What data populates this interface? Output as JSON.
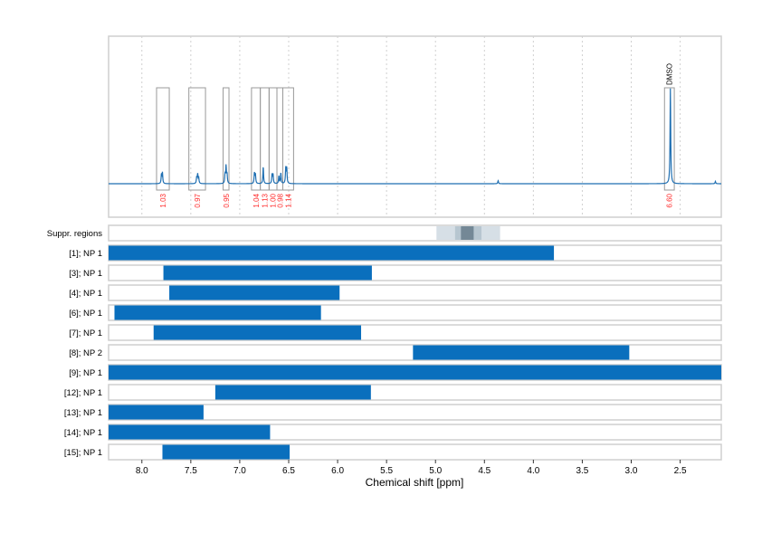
{
  "chart_data": {
    "type": "line",
    "xlabel": "Chemical shift [ppm]",
    "xlim": [
      8.34,
      2.08
    ],
    "x_ticks": [
      8.0,
      7.5,
      7.0,
      6.5,
      6.0,
      5.5,
      5.0,
      4.5,
      4.0,
      3.5,
      3.0,
      2.5
    ],
    "x_tick_labels": [
      "8.0",
      "7.5",
      "7.0",
      "6.5",
      "6.0",
      "5.5",
      "5.0",
      "4.5",
      "4.0",
      "3.5",
      "3.0",
      "2.5"
    ],
    "grid": "vertical dotted",
    "colors": {
      "spectrum": "#1f6fb2",
      "bar": "#0a6fbd",
      "integral_label": "#ff2a2a",
      "box": "#999999"
    },
    "peaks": [
      {
        "ppm": 7.8,
        "h": 0.06
      },
      {
        "ppm": 7.79,
        "h": 0.07
      },
      {
        "ppm": 7.44,
        "h": 0.04
      },
      {
        "ppm": 7.43,
        "h": 0.06
      },
      {
        "ppm": 7.42,
        "h": 0.04
      },
      {
        "ppm": 7.15,
        "h": 0.06
      },
      {
        "ppm": 7.14,
        "h": 0.11
      },
      {
        "ppm": 7.13,
        "h": 0.06
      },
      {
        "ppm": 6.85,
        "h": 0.07
      },
      {
        "ppm": 6.84,
        "h": 0.06
      },
      {
        "ppm": 6.76,
        "h": 0.11
      },
      {
        "ppm": 6.67,
        "h": 0.06
      },
      {
        "ppm": 6.66,
        "h": 0.06
      },
      {
        "ppm": 6.6,
        "h": 0.05
      },
      {
        "ppm": 6.58,
        "h": 0.07
      },
      {
        "ppm": 6.53,
        "h": 0.1
      },
      {
        "ppm": 6.52,
        "h": 0.1
      },
      {
        "ppm": 4.36,
        "h": 0.02
      },
      {
        "ppm": 2.6,
        "h": 0.62
      },
      {
        "ppm": 2.14,
        "h": 0.015
      }
    ],
    "integrals": [
      {
        "from": 7.85,
        "to": 7.72,
        "value": "1.03"
      },
      {
        "from": 7.52,
        "to": 7.35,
        "value": "0.97"
      },
      {
        "from": 7.17,
        "to": 7.11,
        "value": "0.95"
      },
      {
        "from": 6.88,
        "to": 6.79,
        "value": "1.04"
      },
      {
        "from": 6.79,
        "to": 6.7,
        "value": "1.13"
      },
      {
        "from": 6.7,
        "to": 6.62,
        "value": "1.00"
      },
      {
        "from": 6.62,
        "to": 6.56,
        "value": "0.98"
      },
      {
        "from": 6.56,
        "to": 6.45,
        "value": "1.14"
      },
      {
        "from": 2.66,
        "to": 2.56,
        "value": "6.60",
        "annotation": "DMSO"
      }
    ],
    "suppression": {
      "label": "Suppr. regions",
      "regions": [
        {
          "from": 4.99,
          "to": 4.34,
          "color": "#d6dfe6"
        },
        {
          "from": 4.8,
          "to": 4.53,
          "color": "#b7c6d0"
        },
        {
          "from": 4.74,
          "to": 4.61,
          "color": "#748896"
        }
      ]
    },
    "rows": [
      {
        "label": "[1]; NP 1",
        "from": 8.34,
        "to": 3.79
      },
      {
        "label": "[3]; NP 1",
        "from": 7.78,
        "to": 5.65
      },
      {
        "label": "[4]; NP 1",
        "from": 7.72,
        "to": 5.98
      },
      {
        "label": "[6]; NP 1",
        "from": 8.28,
        "to": 6.17
      },
      {
        "label": "[7]; NP 1",
        "from": 7.88,
        "to": 5.76
      },
      {
        "label": "[8]; NP 2",
        "from": 5.23,
        "to": 3.02
      },
      {
        "label": "[9]; NP 1",
        "from": 8.34,
        "to": 2.08
      },
      {
        "label": "[12]; NP 1",
        "from": 7.25,
        "to": 5.66
      },
      {
        "label": "[13]; NP 1",
        "from": 8.34,
        "to": 7.37
      },
      {
        "label": "[14]; NP 1",
        "from": 8.34,
        "to": 6.69
      },
      {
        "label": "[15]; NP 1",
        "from": 7.79,
        "to": 6.49
      }
    ]
  }
}
